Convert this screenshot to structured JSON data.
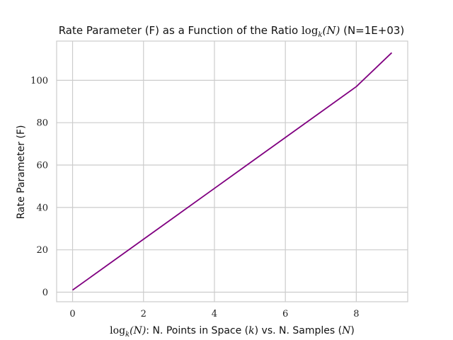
{
  "chart_data": {
    "type": "line",
    "title": {
      "prefix": "Rate Parameter (F) as a Function of the Ratio ",
      "log": "log",
      "log_sub": "k",
      "log_arg": "(N)",
      "suffix": " (N=1E+03)"
    },
    "xlabel": {
      "log": "log",
      "log_sub": "k",
      "log_arg": "(N)",
      "part1": ": N. Points in Space (",
      "k": "k",
      "part2": ") vs. N. Samples (",
      "n": "N",
      "part3": ")"
    },
    "ylabel": "Rate Parameter (F)",
    "xlim": [
      -0.45,
      9.45
    ],
    "ylim": [
      -4.5,
      118.5
    ],
    "xticks": [
      0,
      2,
      4,
      6,
      8
    ],
    "yticks": [
      0,
      20,
      40,
      60,
      80,
      100
    ],
    "grid": true,
    "series": [
      {
        "color": "#800080",
        "x": [
          0,
          1,
          2,
          3,
          4,
          5,
          6,
          7,
          8,
          9
        ],
        "y": [
          1,
          13,
          25,
          37,
          49,
          61,
          73,
          85,
          97,
          113
        ]
      }
    ]
  }
}
